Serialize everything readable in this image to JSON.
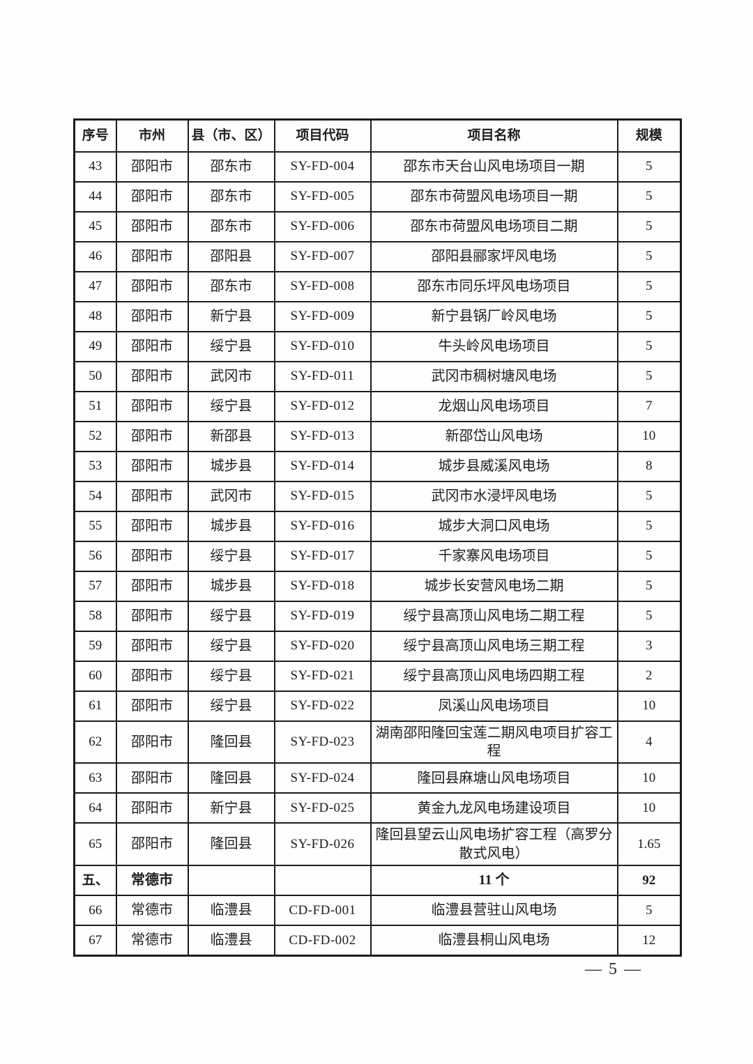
{
  "table": {
    "headers": [
      "序号",
      "市州",
      "县（市、区）",
      "项目代码",
      "项目名称",
      "规模"
    ],
    "rows": [
      {
        "type": "data",
        "no": "43",
        "city": "邵阳市",
        "county": "邵东市",
        "code": "SY-FD-004",
        "name": "邵东市天台山风电场项目一期",
        "scale": "5"
      },
      {
        "type": "data",
        "no": "44",
        "city": "邵阳市",
        "county": "邵东市",
        "code": "SY-FD-005",
        "name": "邵东市荷盟风电场项目一期",
        "scale": "5"
      },
      {
        "type": "data",
        "no": "45",
        "city": "邵阳市",
        "county": "邵东市",
        "code": "SY-FD-006",
        "name": "邵东市荷盟风电场项目二期",
        "scale": "5"
      },
      {
        "type": "data",
        "no": "46",
        "city": "邵阳市",
        "county": "邵阳县",
        "code": "SY-FD-007",
        "name": "邵阳县郦家坪风电场",
        "scale": "5"
      },
      {
        "type": "data",
        "no": "47",
        "city": "邵阳市",
        "county": "邵东市",
        "code": "SY-FD-008",
        "name": "邵东市同乐坪风电场项目",
        "scale": "5"
      },
      {
        "type": "data",
        "no": "48",
        "city": "邵阳市",
        "county": "新宁县",
        "code": "SY-FD-009",
        "name": "新宁县锅厂岭风电场",
        "scale": "5"
      },
      {
        "type": "data",
        "no": "49",
        "city": "邵阳市",
        "county": "绥宁县",
        "code": "SY-FD-010",
        "name": "牛头岭风电场项目",
        "scale": "5"
      },
      {
        "type": "data",
        "no": "50",
        "city": "邵阳市",
        "county": "武冈市",
        "code": "SY-FD-011",
        "name": "武冈市稠树塘风电场",
        "scale": "5"
      },
      {
        "type": "data",
        "no": "51",
        "city": "邵阳市",
        "county": "绥宁县",
        "code": "SY-FD-012",
        "name": "龙烟山风电场项目",
        "scale": "7"
      },
      {
        "type": "data",
        "no": "52",
        "city": "邵阳市",
        "county": "新邵县",
        "code": "SY-FD-013",
        "name": "新邵岱山风电场",
        "scale": "10"
      },
      {
        "type": "data",
        "no": "53",
        "city": "邵阳市",
        "county": "城步县",
        "code": "SY-FD-014",
        "name": "城步县威溪风电场",
        "scale": "8"
      },
      {
        "type": "data",
        "no": "54",
        "city": "邵阳市",
        "county": "武冈市",
        "code": "SY-FD-015",
        "name": "武冈市水浸坪风电场",
        "scale": "5"
      },
      {
        "type": "data",
        "no": "55",
        "city": "邵阳市",
        "county": "城步县",
        "code": "SY-FD-016",
        "name": "城步大洞口风电场",
        "scale": "5"
      },
      {
        "type": "data",
        "no": "56",
        "city": "邵阳市",
        "county": "绥宁县",
        "code": "SY-FD-017",
        "name": "千家寨风电场项目",
        "scale": "5"
      },
      {
        "type": "data",
        "no": "57",
        "city": "邵阳市",
        "county": "城步县",
        "code": "SY-FD-018",
        "name": "城步长安营风电场二期",
        "scale": "5"
      },
      {
        "type": "data",
        "no": "58",
        "city": "邵阳市",
        "county": "绥宁县",
        "code": "SY-FD-019",
        "name": "绥宁县高顶山风电场二期工程",
        "scale": "5"
      },
      {
        "type": "data",
        "no": "59",
        "city": "邵阳市",
        "county": "绥宁县",
        "code": "SY-FD-020",
        "name": "绥宁县高顶山风电场三期工程",
        "scale": "3"
      },
      {
        "type": "data",
        "no": "60",
        "city": "邵阳市",
        "county": "绥宁县",
        "code": "SY-FD-021",
        "name": "绥宁县高顶山风电场四期工程",
        "scale": "2"
      },
      {
        "type": "data",
        "no": "61",
        "city": "邵阳市",
        "county": "绥宁县",
        "code": "SY-FD-022",
        "name": "凤溪山风电场项目",
        "scale": "10"
      },
      {
        "type": "data",
        "no": "62",
        "city": "邵阳市",
        "county": "隆回县",
        "code": "SY-FD-023",
        "name": "湖南邵阳隆回宝莲二期风电项目扩容工程",
        "scale": "4"
      },
      {
        "type": "data",
        "no": "63",
        "city": "邵阳市",
        "county": "隆回县",
        "code": "SY-FD-024",
        "name": "隆回县麻塘山风电场项目",
        "scale": "10"
      },
      {
        "type": "data",
        "no": "64",
        "city": "邵阳市",
        "county": "新宁县",
        "code": "SY-FD-025",
        "name": "黄金九龙风电场建设项目",
        "scale": "10"
      },
      {
        "type": "data",
        "no": "65",
        "city": "邵阳市",
        "county": "隆回县",
        "code": "SY-FD-026",
        "name": "隆回县望云山风电场扩容工程（高罗分散式风电）",
        "scale": "1.65"
      },
      {
        "type": "section",
        "no": "五、",
        "city": "常德市",
        "county": "",
        "code": "",
        "name": "11 个",
        "scale": "92"
      },
      {
        "type": "data",
        "no": "66",
        "city": "常德市",
        "county": "临澧县",
        "code": "CD-FD-001",
        "name": "临澧县营驻山风电场",
        "scale": "5"
      },
      {
        "type": "data",
        "no": "67",
        "city": "常德市",
        "county": "临澧县",
        "code": "CD-FD-002",
        "name": "临澧县桐山风电场",
        "scale": "12"
      }
    ]
  },
  "footer": {
    "page_number": "— 5 —"
  }
}
